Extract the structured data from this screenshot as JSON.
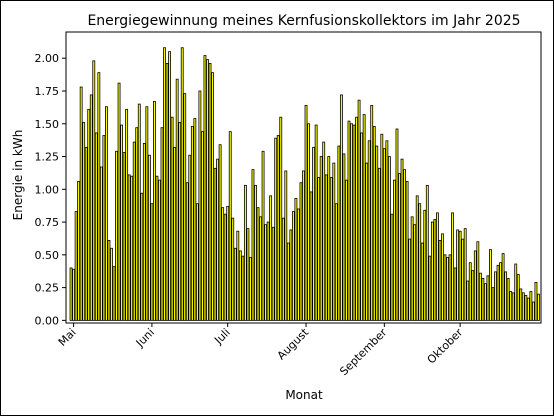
{
  "chart_data": {
    "type": "bar",
    "title": "Energiegewinnung meines Kernfusionskollektors im Jahr 2025",
    "xlabel": "Monat",
    "ylabel": "Energie in kWh",
    "ylim": [
      -0.02,
      2.2
    ],
    "yticks": [
      0.0,
      0.25,
      0.5,
      0.75,
      1.0,
      1.25,
      1.5,
      1.75,
      2.0
    ],
    "ytick_labels": [
      "0.00",
      "0.25",
      "0.50",
      "0.75",
      "1.00",
      "1.25",
      "1.50",
      "1.75",
      "2.00"
    ],
    "xticks": [
      {
        "label": "Mai",
        "date": "2025-05-01"
      },
      {
        "label": "Juni",
        "date": "2025-06-01"
      },
      {
        "label": "Juli",
        "date": "2025-07-01"
      },
      {
        "label": "August",
        "date": "2025-08-01"
      },
      {
        "label": "September",
        "date": "2025-09-01"
      },
      {
        "label": "Oktober",
        "date": "2025-10-01"
      }
    ],
    "grid": false,
    "bar_fill": "#ffff00",
    "bar_edge": "#000000",
    "x_start": "2025-04-30",
    "x_end": "2025-10-31",
    "series": [
      {
        "start_date": "2025-04-30",
        "values": [
          0.4,
          0.39,
          0.83,
          1.06,
          1.78,
          1.51,
          1.32,
          1.61,
          1.72,
          1.98,
          1.43,
          1.89,
          1.17,
          1.41,
          1.63,
          0.61,
          0.55,
          0.41,
          1.29,
          1.81,
          1.49,
          1.28,
          1.61,
          1.11,
          1.1,
          1.36,
          1.47,
          1.65,
          0.97,
          1.35,
          1.63,
          1.26,
          0.89,
          1.67,
          1.1,
          1.07,
          1.47,
          2.08,
          1.96,
          2.05,
          1.55,
          1.32,
          1.84,
          1.51,
          2.08,
          1.73,
          1.05,
          1.26,
          1.48,
          1.54,
          0.89,
          1.75,
          1.44,
          2.02,
          1.99,
          1.96,
          1.89,
          1.16,
          1.23,
          1.34,
          0.86,
          0.81,
          0.87,
          1.44,
          0.78,
          0.55,
          0.68,
          0.53,
          0.49,
          1.03,
          0.7,
          0.48,
          1.15,
          1.03,
          0.86,
          0.79,
          1.29,
          0.73,
          0.75,
          0.95,
          0.71,
          1.39,
          1.41,
          1.55,
          0.78,
          1.14,
          0.59,
          0.69,
          0.83,
          0.93,
          0.85,
          1.05,
          1.14,
          1.64,
          1.5,
          0.98,
          1.32,
          1.49,
          1.09,
          1.25,
          1.36,
          1.11,
          1.25,
          1.09,
          1.2,
          0.89,
          1.33,
          1.72,
          1.27,
          1.07,
          1.52,
          1.5,
          1.49,
          1.55,
          1.68,
          1.43,
          1.57,
          1.2,
          1.37,
          1.64,
          1.48,
          1.33,
          1.16,
          1.42,
          1.31,
          1.37,
          1.25,
          0.81,
          1.07,
          1.46,
          1.12,
          1.23,
          1.15,
          1.06,
          0.62,
          0.79,
          0.73,
          0.95,
          0.89,
          0.59,
          0.84,
          1.03,
          0.49,
          0.75,
          0.77,
          0.82,
          0.61,
          0.66,
          0.5,
          0.48,
          0.5,
          0.82,
          0.4,
          0.69,
          0.68,
          0.62,
          0.7,
          0.3,
          0.44,
          0.38,
          0.53,
          0.6,
          0.36,
          0.32,
          0.28,
          0.34,
          0.54,
          0.25,
          0.37,
          0.42,
          0.44,
          0.51,
          0.37,
          0.32,
          0.22,
          0.21,
          0.43,
          0.35,
          0.24,
          0.21,
          0.19,
          0.17,
          0.22,
          0.14,
          0.29,
          0.2
        ]
      }
    ]
  }
}
